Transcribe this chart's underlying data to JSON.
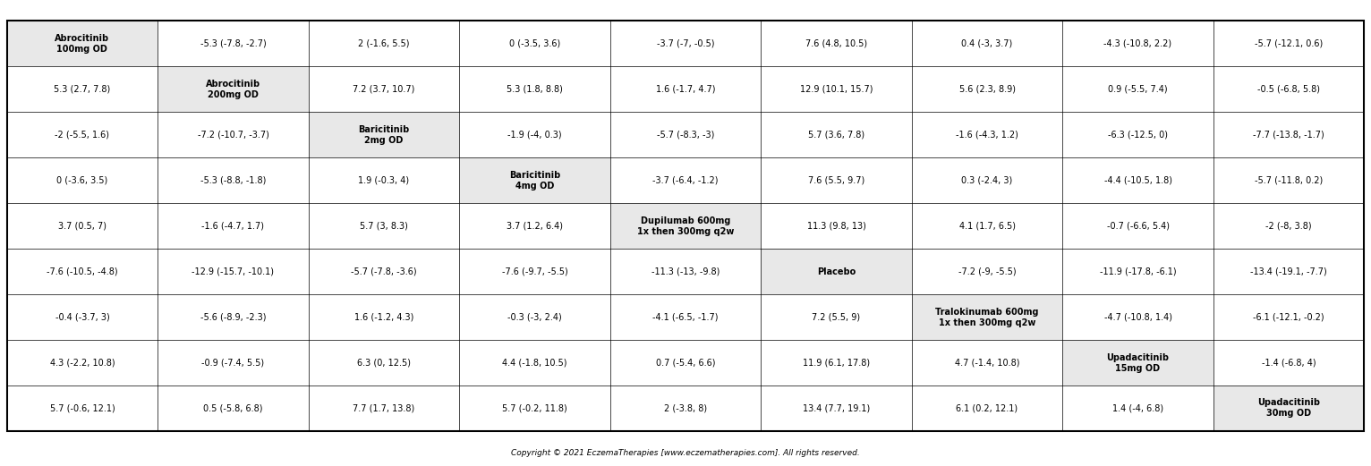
{
  "cells": [
    [
      "Abrocitinib\n100mg OD",
      "-5.3 (-7.8, -2.7)",
      "2 (-1.6, 5.5)",
      "0 (-3.5, 3.6)",
      "-3.7 (-7, -0.5)",
      "7.6 (4.8, 10.5)",
      "0.4 (-3, 3.7)",
      "-4.3 (-10.8, 2.2)",
      "-5.7 (-12.1, 0.6)"
    ],
    [
      "5.3 (2.7, 7.8)",
      "Abrocitinib\n200mg OD",
      "7.2 (3.7, 10.7)",
      "5.3 (1.8, 8.8)",
      "1.6 (-1.7, 4.7)",
      "12.9 (10.1, 15.7)",
      "5.6 (2.3, 8.9)",
      "0.9 (-5.5, 7.4)",
      "-0.5 (-6.8, 5.8)"
    ],
    [
      "-2 (-5.5, 1.6)",
      "-7.2 (-10.7, -3.7)",
      "Baricitinib\n2mg OD",
      "-1.9 (-4, 0.3)",
      "-5.7 (-8.3, -3)",
      "5.7 (3.6, 7.8)",
      "-1.6 (-4.3, 1.2)",
      "-6.3 (-12.5, 0)",
      "-7.7 (-13.8, -1.7)"
    ],
    [
      "0 (-3.6, 3.5)",
      "-5.3 (-8.8, -1.8)",
      "1.9 (-0.3, 4)",
      "Baricitinib\n4mg OD",
      "-3.7 (-6.4, -1.2)",
      "7.6 (5.5, 9.7)",
      "0.3 (-2.4, 3)",
      "-4.4 (-10.5, 1.8)",
      "-5.7 (-11.8, 0.2)"
    ],
    [
      "3.7 (0.5, 7)",
      "-1.6 (-4.7, 1.7)",
      "5.7 (3, 8.3)",
      "3.7 (1.2, 6.4)",
      "Dupilumab 600mg\n1x then 300mg q2w",
      "11.3 (9.8, 13)",
      "4.1 (1.7, 6.5)",
      "-0.7 (-6.6, 5.4)",
      "-2 (-8, 3.8)"
    ],
    [
      "-7.6 (-10.5, -4.8)",
      "-12.9 (-15.7, -10.1)",
      "-5.7 (-7.8, -3.6)",
      "-7.6 (-9.7, -5.5)",
      "-11.3 (-13, -9.8)",
      "Placebo",
      "-7.2 (-9, -5.5)",
      "-11.9 (-17.8, -6.1)",
      "-13.4 (-19.1, -7.7)"
    ],
    [
      "-0.4 (-3.7, 3)",
      "-5.6 (-8.9, -2.3)",
      "1.6 (-1.2, 4.3)",
      "-0.3 (-3, 2.4)",
      "-4.1 (-6.5, -1.7)",
      "7.2 (5.5, 9)",
      "Tralokinumab 600mg\n1x then 300mg q2w",
      "-4.7 (-10.8, 1.4)",
      "-6.1 (-12.1, -0.2)"
    ],
    [
      "4.3 (-2.2, 10.8)",
      "-0.9 (-7.4, 5.5)",
      "6.3 (0, 12.5)",
      "4.4 (-1.8, 10.5)",
      "0.7 (-5.4, 6.6)",
      "11.9 (6.1, 17.8)",
      "4.7 (-1.4, 10.8)",
      "Upadacitinib\n15mg OD",
      "-1.4 (-6.8, 4)"
    ],
    [
      "5.7 (-0.6, 12.1)",
      "0.5 (-5.8, 6.8)",
      "7.7 (1.7, 13.8)",
      "5.7 (-0.2, 11.8)",
      "2 (-3.8, 8)",
      "13.4 (7.7, 19.1)",
      "6.1 (0.2, 12.1)",
      "1.4 (-4, 6.8)",
      "Upadacitinib\n30mg OD"
    ]
  ],
  "diagonal_bg": "#e8e8e8",
  "normal_bg": "#ffffff",
  "border_color": "#000000",
  "text_color": "#000000",
  "copyright_text": "Copyright © 2021 EczemaTherapies [www.eczematherapies.com]. All rights reserved.",
  "figsize": [
    15.32,
    5.21
  ],
  "dpi": 100,
  "font_size": 7.0,
  "outer_lw": 1.5,
  "inner_lw": 0.5
}
